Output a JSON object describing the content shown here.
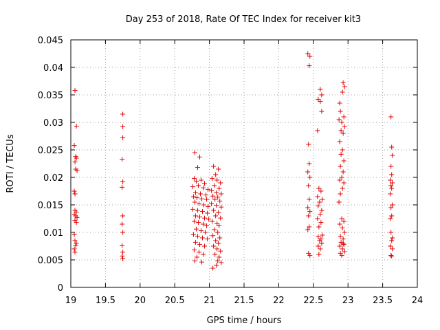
{
  "chart_data": {
    "type": "scatter",
    "title": "Day 253 of 2018, Rate Of TEC Index for receiver kit3",
    "xlabel": "GPS time / hours",
    "ylabel": "ROTI / TECUs",
    "xlim": [
      19,
      24
    ],
    "ylim": [
      0,
      0.045
    ],
    "xticks": [
      "19",
      "19.5",
      "20",
      "20.5",
      "21",
      "21.5",
      "22",
      "22.5",
      "23",
      "23.5",
      "24"
    ],
    "yticks": [
      "0",
      "0.005",
      "0.01",
      "0.015",
      "0.02",
      "0.025",
      "0.03",
      "0.035",
      "0.04",
      "0.045"
    ],
    "grid": true,
    "marker": "+",
    "series": [
      {
        "name": "ROTI",
        "color": "#e00000",
        "points": [
          [
            19.06,
            0.0358
          ],
          [
            19.08,
            0.0293
          ],
          [
            19.05,
            0.0258
          ],
          [
            19.07,
            0.0238
          ],
          [
            19.08,
            0.0235
          ],
          [
            19.06,
            0.0228
          ],
          [
            19.07,
            0.0215
          ],
          [
            19.09,
            0.0212
          ],
          [
            19.05,
            0.0175
          ],
          [
            19.06,
            0.017
          ],
          [
            19.06,
            0.014
          ],
          [
            19.08,
            0.0137
          ],
          [
            19.05,
            0.0133
          ],
          [
            19.07,
            0.013
          ],
          [
            19.09,
            0.0127
          ],
          [
            19.06,
            0.0122
          ],
          [
            19.08,
            0.0118
          ],
          [
            19.05,
            0.0096
          ],
          [
            19.06,
            0.0085
          ],
          [
            19.08,
            0.008
          ],
          [
            19.07,
            0.0076
          ],
          [
            19.05,
            0.007
          ],
          [
            19.06,
            0.0064
          ],
          [
            19.75,
            0.0315
          ],
          [
            19.75,
            0.0292
          ],
          [
            19.75,
            0.0272
          ],
          [
            19.74,
            0.0233
          ],
          [
            19.75,
            0.0192
          ],
          [
            19.74,
            0.0182
          ],
          [
            19.75,
            0.013
          ],
          [
            19.74,
            0.0115
          ],
          [
            19.75,
            0.01
          ],
          [
            19.74,
            0.0076
          ],
          [
            19.75,
            0.0064
          ],
          [
            19.74,
            0.0057
          ],
          [
            19.75,
            0.0052
          ],
          [
            20.79,
            0.0245
          ],
          [
            20.86,
            0.0237
          ],
          [
            20.83,
            0.0218
          ],
          [
            20.78,
            0.0198
          ],
          [
            20.81,
            0.0193
          ],
          [
            20.88,
            0.0195
          ],
          [
            20.93,
            0.0189
          ],
          [
            20.76,
            0.0183
          ],
          [
            20.84,
            0.0185
          ],
          [
            20.91,
            0.0181
          ],
          [
            20.98,
            0.0178
          ],
          [
            20.8,
            0.0172
          ],
          [
            20.87,
            0.017
          ],
          [
            20.95,
            0.0168
          ],
          [
            20.77,
            0.0165
          ],
          [
            20.82,
            0.0163
          ],
          [
            20.89,
            0.0161
          ],
          [
            20.96,
            0.016
          ],
          [
            20.79,
            0.0155
          ],
          [
            20.85,
            0.0152
          ],
          [
            20.92,
            0.015
          ],
          [
            20.98,
            0.0147
          ],
          [
            20.76,
            0.0142
          ],
          [
            20.83,
            0.014
          ],
          [
            20.9,
            0.0138
          ],
          [
            20.97,
            0.0135
          ],
          [
            20.8,
            0.013
          ],
          [
            20.86,
            0.0128
          ],
          [
            20.93,
            0.0126
          ],
          [
            20.99,
            0.0124
          ],
          [
            20.78,
            0.012
          ],
          [
            20.84,
            0.0118
          ],
          [
            20.91,
            0.0115
          ],
          [
            20.96,
            0.0112
          ],
          [
            20.81,
            0.0106
          ],
          [
            20.88,
            0.0103
          ],
          [
            20.94,
            0.01
          ],
          [
            20.77,
            0.0096
          ],
          [
            20.83,
            0.0093
          ],
          [
            20.9,
            0.009
          ],
          [
            20.97,
            0.0088
          ],
          [
            20.8,
            0.0082
          ],
          [
            20.86,
            0.0078
          ],
          [
            20.93,
            0.0075
          ],
          [
            20.78,
            0.0068
          ],
          [
            20.85,
            0.0064
          ],
          [
            20.91,
            0.006
          ],
          [
            20.82,
            0.0055
          ],
          [
            20.79,
            0.0048
          ],
          [
            20.89,
            0.0046
          ],
          [
            21.06,
            0.022
          ],
          [
            21.13,
            0.0215
          ],
          [
            21.09,
            0.0205
          ],
          [
            21.04,
            0.0198
          ],
          [
            21.11,
            0.0195
          ],
          [
            21.16,
            0.019
          ],
          [
            21.07,
            0.0185
          ],
          [
            21.14,
            0.018
          ],
          [
            21.03,
            0.0176
          ],
          [
            21.1,
            0.0172
          ],
          [
            21.17,
            0.017
          ],
          [
            21.05,
            0.0166
          ],
          [
            21.12,
            0.0164
          ],
          [
            21.08,
            0.016
          ],
          [
            21.15,
            0.0157
          ],
          [
            21.03,
            0.0152
          ],
          [
            21.1,
            0.0149
          ],
          [
            21.17,
            0.0146
          ],
          [
            21.06,
            0.014
          ],
          [
            21.13,
            0.0136
          ],
          [
            21.09,
            0.013
          ],
          [
            21.16,
            0.0126
          ],
          [
            21.04,
            0.012
          ],
          [
            21.11,
            0.0116
          ],
          [
            21.14,
            0.0112
          ],
          [
            21.07,
            0.0105
          ],
          [
            21.12,
            0.01
          ],
          [
            21.05,
            0.0094
          ],
          [
            21.15,
            0.009
          ],
          [
            21.09,
            0.0085
          ],
          [
            21.13,
            0.008
          ],
          [
            21.06,
            0.0075
          ],
          [
            21.11,
            0.007
          ],
          [
            21.16,
            0.0066
          ],
          [
            21.08,
            0.006
          ],
          [
            21.14,
            0.0055
          ],
          [
            21.12,
            0.0048
          ],
          [
            21.17,
            0.0045
          ],
          [
            21.05,
            0.0035
          ],
          [
            21.1,
            0.004
          ],
          [
            22.42,
            0.0425
          ],
          [
            22.45,
            0.042
          ],
          [
            22.44,
            0.0403
          ],
          [
            22.43,
            0.026
          ],
          [
            22.44,
            0.0225
          ],
          [
            22.42,
            0.021
          ],
          [
            22.45,
            0.02
          ],
          [
            22.43,
            0.0185
          ],
          [
            22.44,
            0.016
          ],
          [
            22.42,
            0.0145
          ],
          [
            22.45,
            0.0138
          ],
          [
            22.43,
            0.013
          ],
          [
            22.44,
            0.011
          ],
          [
            22.42,
            0.0105
          ],
          [
            22.43,
            0.0062
          ],
          [
            22.45,
            0.0058
          ],
          [
            22.6,
            0.036
          ],
          [
            22.62,
            0.035
          ],
          [
            22.57,
            0.0342
          ],
          [
            22.6,
            0.0338
          ],
          [
            22.62,
            0.032
          ],
          [
            22.56,
            0.0285
          ],
          [
            22.58,
            0.018
          ],
          [
            22.61,
            0.0175
          ],
          [
            22.56,
            0.0165
          ],
          [
            22.63,
            0.016
          ],
          [
            22.59,
            0.0155
          ],
          [
            22.57,
            0.0148
          ],
          [
            22.62,
            0.014
          ],
          [
            22.6,
            0.0133
          ],
          [
            22.56,
            0.0125
          ],
          [
            22.61,
            0.0118
          ],
          [
            22.58,
            0.011
          ],
          [
            22.63,
            0.0095
          ],
          [
            22.57,
            0.0092
          ],
          [
            22.61,
            0.0088
          ],
          [
            22.59,
            0.0085
          ],
          [
            22.62,
            0.008
          ],
          [
            22.57,
            0.0075
          ],
          [
            22.6,
            0.007
          ],
          [
            22.58,
            0.006
          ],
          [
            22.88,
            0.0335
          ],
          [
            22.93,
            0.0372
          ],
          [
            22.95,
            0.0365
          ],
          [
            22.92,
            0.0355
          ],
          [
            22.89,
            0.032
          ],
          [
            22.94,
            0.031
          ],
          [
            22.87,
            0.0305
          ],
          [
            22.91,
            0.03
          ],
          [
            22.95,
            0.0292
          ],
          [
            22.9,
            0.0285
          ],
          [
            22.93,
            0.028
          ],
          [
            22.88,
            0.0265
          ],
          [
            22.92,
            0.025
          ],
          [
            22.9,
            0.0242
          ],
          [
            22.94,
            0.023
          ],
          [
            22.89,
            0.022
          ],
          [
            22.93,
            0.021
          ],
          [
            22.91,
            0.02
          ],
          [
            22.88,
            0.0195
          ],
          [
            22.94,
            0.019
          ],
          [
            22.92,
            0.018
          ],
          [
            22.89,
            0.017
          ],
          [
            22.87,
            0.0155
          ],
          [
            22.91,
            0.0125
          ],
          [
            22.94,
            0.012
          ],
          [
            22.88,
            0.0115
          ],
          [
            22.92,
            0.0108
          ],
          [
            22.95,
            0.01
          ],
          [
            22.89,
            0.0093
          ],
          [
            22.93,
            0.0088
          ],
          [
            22.9,
            0.0082
          ],
          [
            22.94,
            0.0078
          ],
          [
            22.88,
            0.0075
          ],
          [
            22.92,
            0.007
          ],
          [
            22.95,
            0.0065
          ],
          [
            22.89,
            0.0062
          ],
          [
            22.91,
            0.0058
          ],
          [
            22.93,
            0.008
          ],
          [
            23.62,
            0.031
          ],
          [
            23.63,
            0.0255
          ],
          [
            23.64,
            0.024
          ],
          [
            23.62,
            0.022
          ],
          [
            23.63,
            0.0205
          ],
          [
            23.61,
            0.0195
          ],
          [
            23.64,
            0.019
          ],
          [
            23.62,
            0.0185
          ],
          [
            23.63,
            0.018
          ],
          [
            23.61,
            0.017
          ],
          [
            23.64,
            0.015
          ],
          [
            23.62,
            0.0145
          ],
          [
            23.63,
            0.013
          ],
          [
            23.61,
            0.0125
          ],
          [
            23.62,
            0.01
          ],
          [
            23.64,
            0.009
          ],
          [
            23.63,
            0.0085
          ],
          [
            23.61,
            0.0075
          ],
          [
            23.64,
            0.007
          ],
          [
            23.62,
            0.0058
          ],
          [
            23.63,
            0.0057
          ]
        ]
      }
    ]
  }
}
